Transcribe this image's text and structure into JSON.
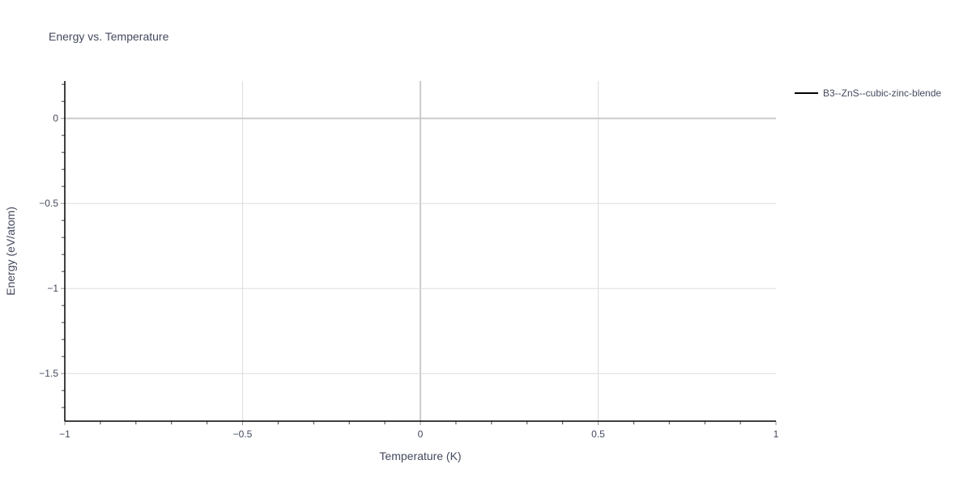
{
  "chart_data": {
    "type": "line",
    "title": "Energy vs. Temperature",
    "xlabel": "Temperature (K)",
    "ylabel": "Energy (eV/atom)",
    "xlim": [
      -1,
      1
    ],
    "ylim": [
      -1.78,
      0.22
    ],
    "xticks": [
      -1,
      -0.5,
      0,
      0.5,
      1
    ],
    "xtick_labels": [
      "−1",
      "−0.5",
      "0",
      "0.5",
      "1"
    ],
    "yticks": [
      0,
      -0.5,
      -1,
      -1.5
    ],
    "ytick_labels": [
      "0",
      "−0.5",
      "−1",
      "−1.5"
    ],
    "grid": true,
    "legend_position": "top-right",
    "series": [
      {
        "name": "B3--ZnS--cubic-zinc-blende",
        "color": "#000000",
        "x": [],
        "y": []
      }
    ]
  }
}
